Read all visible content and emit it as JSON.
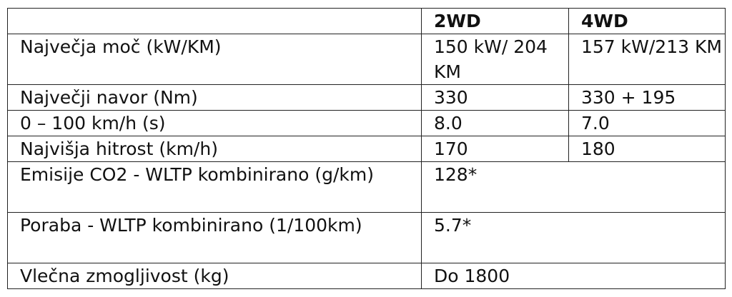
{
  "header": [
    "",
    "2WD",
    "4WD"
  ],
  "rows": [
    {
      "label": "Največja moč (kW/KM)",
      "v2wd": "150 kW/ 204 KM",
      "v4wd": "157 kW/213 KM"
    },
    {
      "label": "Največji navor (Nm)",
      "v2wd": "330",
      "v4wd": "330 + 195"
    },
    {
      "label": "0 – 100 km/h (s)",
      "v2wd": "8.0",
      "v4wd": "7.0"
    },
    {
      "label": "Najvišja hitrost (km/h)",
      "v2wd": "170",
      "v4wd": "180"
    },
    {
      "label": "Emisije CO2 - WLTP kombinirano (g/km)",
      "value": "128*"
    },
    {
      "label": "Poraba - WLTP kombinirano (1/100km)",
      "value": "5.7*"
    },
    {
      "label": "Vlečna zmogljivost (kg)",
      "value": "Do 1800"
    }
  ]
}
